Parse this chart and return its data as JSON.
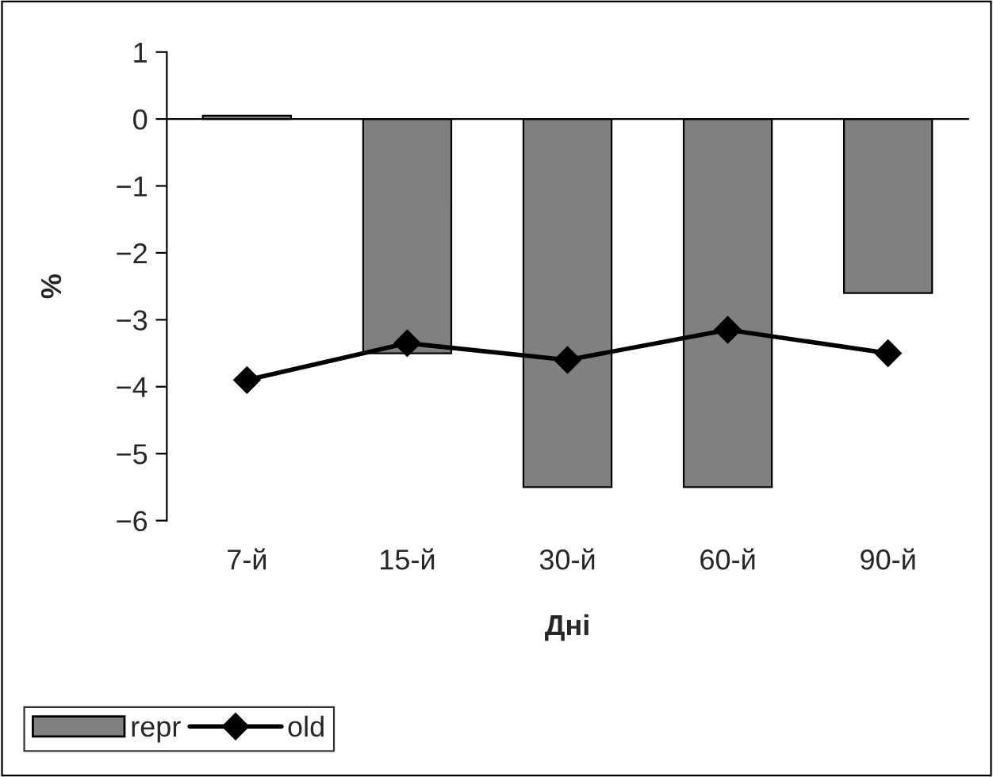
{
  "chart_data": {
    "type": "bar",
    "xlabel": "Дні",
    "ylabel": "%",
    "categories": [
      "7-й",
      "15-й",
      "30-й",
      "60-й",
      "90-й"
    ],
    "series": [
      {
        "name": "repr",
        "color": "#808080",
        "values": [
          0.05,
          -3.5,
          -5.5,
          -5.5,
          -2.6
        ]
      },
      {
        "name": "old",
        "type": "line",
        "color": "#000000",
        "values": [
          -3.9,
          -3.35,
          -3.6,
          -3.15,
          -3.5
        ]
      }
    ],
    "ylim": [
      -6,
      1
    ],
    "yticks": [
      {
        "value": -6,
        "label": "−6"
      },
      {
        "value": -5,
        "label": "−5"
      },
      {
        "value": -4,
        "label": "−4"
      },
      {
        "value": -3,
        "label": "−3"
      },
      {
        "value": -2,
        "label": "−2"
      },
      {
        "value": -1,
        "label": "−1"
      },
      0,
      1
    ],
    "legend": "bottom left",
    "marker": "diamond",
    "line_style": "solid"
  }
}
